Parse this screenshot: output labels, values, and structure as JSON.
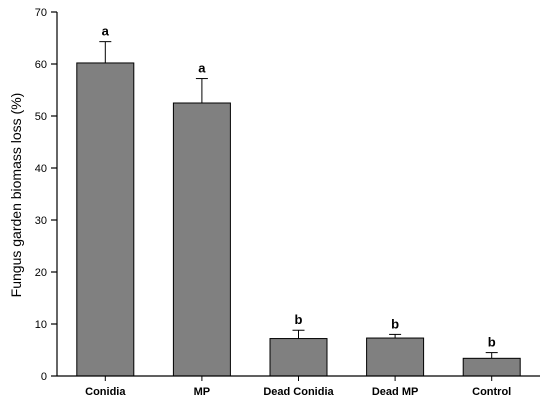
{
  "chart_data": {
    "type": "bar",
    "categories": [
      "Conidia",
      "MP",
      "Dead Conidia",
      "Dead MP",
      "Control"
    ],
    "values": [
      60.2,
      52.5,
      7.2,
      7.3,
      3.4
    ],
    "errors": [
      4.1,
      4.7,
      1.6,
      0.7,
      1.1
    ],
    "significance": [
      "a",
      "a",
      "b",
      "b",
      "b"
    ],
    "title": "",
    "xlabel": "",
    "ylabel": "Fungus garden biomass loss (%)",
    "ylim": [
      0,
      70
    ],
    "yticks": [
      0,
      10,
      20,
      30,
      40,
      50,
      60,
      70
    ],
    "grid": false,
    "bar_color": "#808080"
  }
}
